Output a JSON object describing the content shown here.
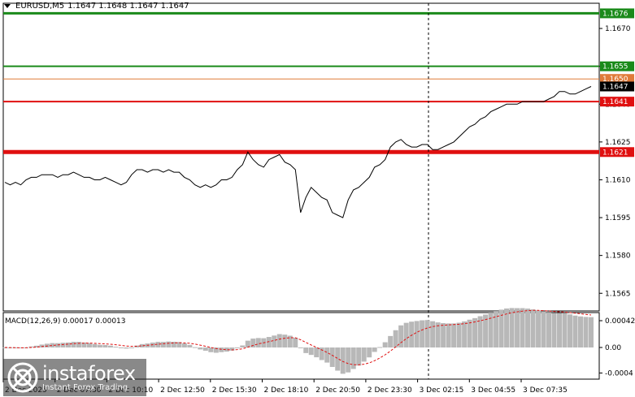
{
  "header": {
    "symbol": "EURUSD,M5",
    "ohlc": "1.1647 1.1648 1.1647 1.1647"
  },
  "macd": {
    "label": "MACD(12,26,9) 0.00017 0.00013",
    "ticks": [
      "0.00042",
      "0.00",
      "-0.0004"
    ]
  },
  "price_axis": {
    "ticks": [
      "1.1670",
      "1.1655",
      "1.1640",
      "1.1625",
      "1.1610",
      "1.1595",
      "1.1580",
      "1.1565"
    ]
  },
  "time_axis": {
    "labels": [
      "2 Dec 2025",
      "2 Dec 07:30",
      "2 Dec 10:10",
      "2 Dec 12:50",
      "2 Dec 15:30",
      "2 Dec 18:10",
      "2 Dec 20:50",
      "2 Dec 23:30",
      "3 Dec 02:15",
      "3 Dec 04:55",
      "3 Dec 07:35"
    ]
  },
  "levels": [
    {
      "label": "1.1676",
      "color": "#1a8a1a",
      "bg": "#1a8a1a"
    },
    {
      "label": "1.1655",
      "color": "#1a8a1a",
      "bg": "#1a8a1a"
    },
    {
      "label": "1.1650",
      "color": "#e07b39",
      "bg": "#e07b39"
    },
    {
      "label": "1.1647",
      "color": "#000000",
      "bg": "#000000"
    },
    {
      "label": "1.1641",
      "color": "#e01010",
      "bg": "#e01010"
    },
    {
      "label": "1.1621",
      "color": "#e01010",
      "bg": "#e01010"
    }
  ],
  "watermark": {
    "brand": "instaforex",
    "sub": "Instant Forex Trading"
  },
  "colors": {
    "price_line": "#000000",
    "support": "#e01010",
    "resistance": "#1a8a1a",
    "histogram": "#b8b8b8",
    "signal": "#e01010"
  },
  "chart_data": {
    "type": "line",
    "ylim": [
      1.1558,
      1.168
    ],
    "series": [
      {
        "values": [
          1.1609,
          1.1608,
          1.1609,
          1.1608,
          1.161,
          1.1611,
          1.1611,
          1.1612,
          1.1612,
          1.1612,
          1.1611,
          1.1612,
          1.1612,
          1.1613,
          1.1612,
          1.1611,
          1.1611,
          1.161,
          1.161,
          1.1611,
          1.161,
          1.1609,
          1.1608,
          1.1609,
          1.1612,
          1.1614,
          1.1614,
          1.1613,
          1.1614,
          1.1614,
          1.1613,
          1.1614,
          1.1613,
          1.1613,
          1.1611,
          1.161,
          1.1608,
          1.1607,
          1.1608,
          1.1607,
          1.1608,
          1.161,
          1.161,
          1.1611,
          1.1614,
          1.1616,
          1.1621,
          1.1618,
          1.1616,
          1.1615,
          1.1618,
          1.1619,
          1.162,
          1.1617,
          1.1616,
          1.1614,
          1.1597,
          1.1603,
          1.1607,
          1.1605,
          1.1603,
          1.1602,
          1.1597,
          1.1596,
          1.1595,
          1.1602,
          1.1606,
          1.1607,
          1.1609,
          1.1611,
          1.1615,
          1.1616,
          1.1618,
          1.1623,
          1.1625,
          1.1626,
          1.1624,
          1.1623,
          1.1623,
          1.1624,
          1.1624,
          1.1622,
          1.1622,
          1.1623,
          1.1624,
          1.1625,
          1.1627,
          1.1629,
          1.1631,
          1.1632,
          1.1634,
          1.1635,
          1.1637,
          1.1638,
          1.1639,
          1.164,
          1.164,
          1.164,
          1.1641,
          1.1641,
          1.1641,
          1.1641,
          1.1641,
          1.1642,
          1.1643,
          1.1645,
          1.1645,
          1.1644,
          1.1644,
          1.1645,
          1.1646,
          1.1647
        ]
      }
    ]
  }
}
